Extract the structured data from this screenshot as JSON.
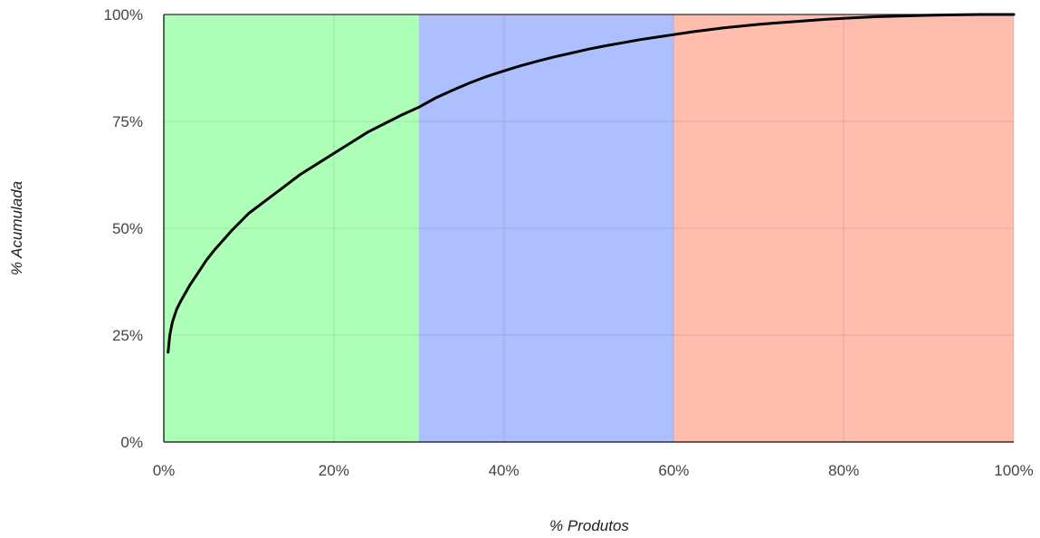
{
  "chart_data": {
    "type": "line",
    "xlabel": "% Produtos",
    "ylabel": "% Acumulada",
    "xlim": [
      0,
      100
    ],
    "ylim": [
      0,
      100
    ],
    "x_tick_labels": [
      "0%",
      "20%",
      "40%",
      "60%",
      "80%",
      "100%"
    ],
    "x_ticks": [
      0,
      20,
      40,
      60,
      80,
      100
    ],
    "y_tick_labels": [
      "0%",
      "25%",
      "50%",
      "75%",
      "100%"
    ],
    "y_ticks": [
      0,
      25,
      50,
      75,
      100
    ],
    "grid": true,
    "bands": [
      {
        "from": 0,
        "to": 30,
        "color": "#adffb8"
      },
      {
        "from": 30,
        "to": 60,
        "color": "#aebfff"
      },
      {
        "from": 60,
        "to": 100,
        "color": "#ffbdad"
      }
    ],
    "series": [
      {
        "color": "#000000",
        "x": [
          0.5,
          0.7,
          1,
          1.5,
          2,
          3,
          4,
          5,
          6,
          8,
          10,
          12,
          14,
          16,
          18,
          20,
          22,
          24,
          26,
          28,
          30,
          32,
          34,
          36,
          38,
          40,
          42,
          44,
          46,
          48,
          50,
          52,
          54,
          56,
          58,
          60,
          62,
          64,
          66,
          68,
          70,
          72,
          74,
          76,
          78,
          80,
          82,
          84,
          86,
          88,
          90,
          92,
          94,
          96,
          98,
          100
        ],
        "y": [
          21,
          25,
          28,
          31,
          33,
          36.5,
          39.5,
          42.5,
          45,
          49.5,
          53.5,
          56.5,
          59.5,
          62.5,
          65,
          67.5,
          70,
          72.5,
          74.5,
          76.5,
          78.3,
          80.5,
          82.3,
          84,
          85.5,
          86.8,
          88,
          89.1,
          90.1,
          91,
          91.9,
          92.7,
          93.4,
          94.1,
          94.7,
          95.3,
          95.9,
          96.4,
          96.9,
          97.3,
          97.7,
          98,
          98.3,
          98.6,
          98.9,
          99.1,
          99.3,
          99.5,
          99.6,
          99.7,
          99.8,
          99.9,
          99.95,
          100,
          100,
          100
        ]
      }
    ]
  }
}
